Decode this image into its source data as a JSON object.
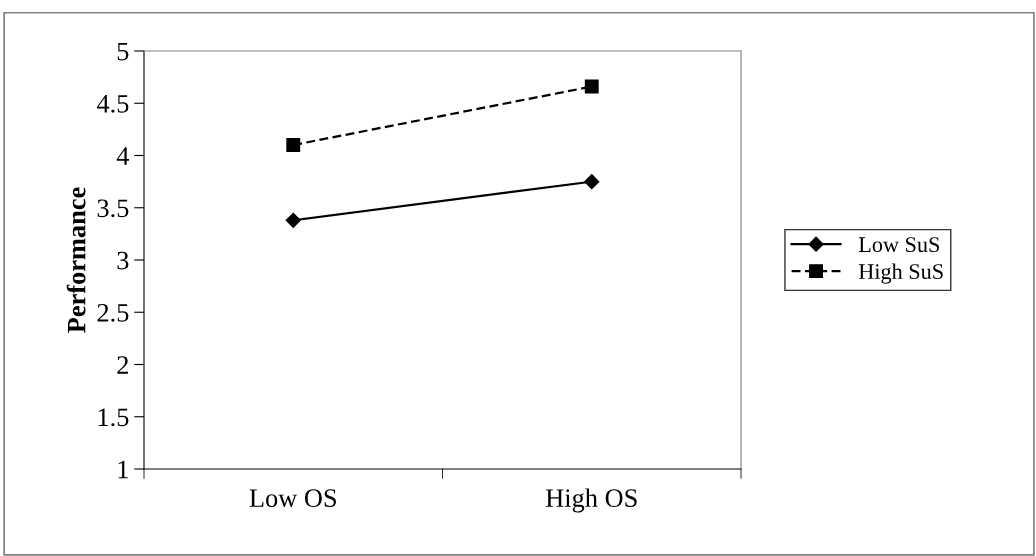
{
  "chart_data": {
    "type": "line",
    "ylabel": "Performance",
    "categories": [
      "Low OS",
      "High OS"
    ],
    "series": [
      {
        "name": "Low SuS",
        "color": "#000000",
        "values": [
          3.38,
          3.75
        ],
        "marker": "diamond",
        "line_style": "solid"
      },
      {
        "name": "High SuS",
        "color": "#000000",
        "values": [
          4.1,
          4.66
        ],
        "marker": "square",
        "line_style": "dashed"
      }
    ],
    "ylim": [
      1,
      5
    ],
    "yticks": [
      1,
      1.5,
      2,
      2.5,
      3,
      3.5,
      4,
      4.5,
      5
    ],
    "grid": false,
    "legend": "right"
  }
}
